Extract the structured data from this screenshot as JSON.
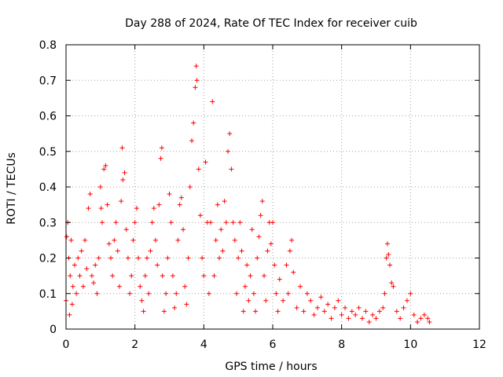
{
  "chart_data": {
    "type": "scatter",
    "title": "Day 288 of 2024, Rate Of TEC Index for receiver cuib",
    "xlabel": "GPS time / hours",
    "ylabel": "ROTI / TECUs",
    "xlim": [
      0,
      12
    ],
    "ylim": [
      0,
      0.8
    ],
    "xticks": [
      0,
      2,
      4,
      6,
      8,
      10,
      12
    ],
    "xtick_labels": [
      "0",
      "2",
      "4",
      "6",
      "8",
      "10",
      "12"
    ],
    "yticks": [
      0,
      0.1,
      0.2,
      0.3,
      0.4,
      0.5,
      0.6,
      0.7,
      0.8
    ],
    "ytick_labels": [
      "0",
      "0.1",
      "0.2",
      "0.3",
      "0.4",
      "0.5",
      "0.6",
      "0.7",
      "0.8"
    ],
    "grid": true,
    "marker": "+",
    "color": "#ff0000",
    "series": [
      {
        "name": "ROTI",
        "points": [
          [
            0.0,
            0.08
          ],
          [
            0.02,
            0.26
          ],
          [
            0.05,
            0.3
          ],
          [
            0.08,
            0.2
          ],
          [
            0.1,
            0.04
          ],
          [
            0.12,
            0.15
          ],
          [
            0.15,
            0.25
          ],
          [
            0.18,
            0.07
          ],
          [
            0.2,
            0.12
          ],
          [
            0.25,
            0.18
          ],
          [
            0.3,
            0.1
          ],
          [
            0.35,
            0.2
          ],
          [
            0.4,
            0.15
          ],
          [
            0.45,
            0.22
          ],
          [
            0.5,
            0.12
          ],
          [
            0.55,
            0.25
          ],
          [
            0.6,
            0.17
          ],
          [
            0.65,
            0.34
          ],
          [
            0.7,
            0.38
          ],
          [
            0.75,
            0.15
          ],
          [
            0.8,
            0.13
          ],
          [
            0.85,
            0.18
          ],
          [
            0.9,
            0.1
          ],
          [
            0.95,
            0.2
          ],
          [
            1.0,
            0.4
          ],
          [
            1.02,
            0.34
          ],
          [
            1.05,
            0.3
          ],
          [
            1.1,
            0.45
          ],
          [
            1.15,
            0.46
          ],
          [
            1.2,
            0.35
          ],
          [
            1.25,
            0.24
          ],
          [
            1.3,
            0.2
          ],
          [
            1.35,
            0.15
          ],
          [
            1.4,
            0.25
          ],
          [
            1.45,
            0.3
          ],
          [
            1.5,
            0.22
          ],
          [
            1.55,
            0.12
          ],
          [
            1.6,
            0.36
          ],
          [
            1.63,
            0.51
          ],
          [
            1.65,
            0.42
          ],
          [
            1.7,
            0.44
          ],
          [
            1.75,
            0.28
          ],
          [
            1.8,
            0.2
          ],
          [
            1.85,
            0.1
          ],
          [
            1.9,
            0.15
          ],
          [
            1.95,
            0.25
          ],
          [
            2.0,
            0.3
          ],
          [
            2.05,
            0.34
          ],
          [
            2.1,
            0.2
          ],
          [
            2.15,
            0.12
          ],
          [
            2.2,
            0.08
          ],
          [
            2.25,
            0.05
          ],
          [
            2.3,
            0.15
          ],
          [
            2.35,
            0.2
          ],
          [
            2.4,
            0.1
          ],
          [
            2.45,
            0.22
          ],
          [
            2.5,
            0.3
          ],
          [
            2.55,
            0.34
          ],
          [
            2.6,
            0.25
          ],
          [
            2.65,
            0.18
          ],
          [
            2.7,
            0.35
          ],
          [
            2.75,
            0.48
          ],
          [
            2.78,
            0.51
          ],
          [
            2.8,
            0.15
          ],
          [
            2.85,
            0.05
          ],
          [
            2.9,
            0.1
          ],
          [
            2.95,
            0.2
          ],
          [
            3.0,
            0.38
          ],
          [
            3.05,
            0.3
          ],
          [
            3.1,
            0.15
          ],
          [
            3.15,
            0.06
          ],
          [
            3.2,
            0.1
          ],
          [
            3.25,
            0.25
          ],
          [
            3.3,
            0.35
          ],
          [
            3.35,
            0.37
          ],
          [
            3.4,
            0.28
          ],
          [
            3.45,
            0.12
          ],
          [
            3.5,
            0.07
          ],
          [
            3.55,
            0.2
          ],
          [
            3.6,
            0.4
          ],
          [
            3.65,
            0.53
          ],
          [
            3.7,
            0.58
          ],
          [
            3.75,
            0.68
          ],
          [
            3.78,
            0.74
          ],
          [
            3.8,
            0.7
          ],
          [
            3.85,
            0.45
          ],
          [
            3.9,
            0.32
          ],
          [
            3.95,
            0.2
          ],
          [
            4.0,
            0.15
          ],
          [
            4.05,
            0.47
          ],
          [
            4.1,
            0.3
          ],
          [
            4.15,
            0.1
          ],
          [
            4.2,
            0.3
          ],
          [
            4.25,
            0.64
          ],
          [
            4.3,
            0.15
          ],
          [
            4.35,
            0.25
          ],
          [
            4.4,
            0.35
          ],
          [
            4.45,
            0.2
          ],
          [
            4.5,
            0.28
          ],
          [
            4.55,
            0.22
          ],
          [
            4.6,
            0.36
          ],
          [
            4.65,
            0.3
          ],
          [
            4.7,
            0.5
          ],
          [
            4.75,
            0.55
          ],
          [
            4.8,
            0.45
          ],
          [
            4.85,
            0.3
          ],
          [
            4.9,
            0.25
          ],
          [
            4.95,
            0.1
          ],
          [
            5.0,
            0.2
          ],
          [
            5.05,
            0.3
          ],
          [
            5.1,
            0.22
          ],
          [
            5.15,
            0.05
          ],
          [
            5.2,
            0.12
          ],
          [
            5.25,
            0.18
          ],
          [
            5.3,
            0.08
          ],
          [
            5.35,
            0.15
          ],
          [
            5.4,
            0.28
          ],
          [
            5.45,
            0.1
          ],
          [
            5.5,
            0.05
          ],
          [
            5.55,
            0.2
          ],
          [
            5.6,
            0.26
          ],
          [
            5.65,
            0.32
          ],
          [
            5.7,
            0.36
          ],
          [
            5.75,
            0.15
          ],
          [
            5.8,
            0.08
          ],
          [
            5.85,
            0.22
          ],
          [
            5.9,
            0.3
          ],
          [
            5.95,
            0.24
          ],
          [
            6.0,
            0.3
          ],
          [
            6.05,
            0.18
          ],
          [
            6.1,
            0.1
          ],
          [
            6.15,
            0.05
          ],
          [
            6.2,
            0.14
          ],
          [
            6.3,
            0.08
          ],
          [
            6.4,
            0.18
          ],
          [
            6.45,
            0.1
          ],
          [
            6.5,
            0.22
          ],
          [
            6.55,
            0.25
          ],
          [
            6.6,
            0.16
          ],
          [
            6.7,
            0.06
          ],
          [
            6.8,
            0.12
          ],
          [
            6.9,
            0.05
          ],
          [
            7.0,
            0.1
          ],
          [
            7.1,
            0.08
          ],
          [
            7.2,
            0.04
          ],
          [
            7.3,
            0.06
          ],
          [
            7.4,
            0.09
          ],
          [
            7.5,
            0.05
          ],
          [
            7.6,
            0.07
          ],
          [
            7.7,
            0.03
          ],
          [
            7.8,
            0.06
          ],
          [
            7.9,
            0.08
          ],
          [
            8.0,
            0.04
          ],
          [
            8.1,
            0.06
          ],
          [
            8.2,
            0.03
          ],
          [
            8.3,
            0.05
          ],
          [
            8.4,
            0.04
          ],
          [
            8.5,
            0.06
          ],
          [
            8.6,
            0.03
          ],
          [
            8.7,
            0.05
          ],
          [
            8.8,
            0.02
          ],
          [
            8.9,
            0.04
          ],
          [
            9.0,
            0.03
          ],
          [
            9.1,
            0.05
          ],
          [
            9.2,
            0.06
          ],
          [
            9.25,
            0.1
          ],
          [
            9.3,
            0.2
          ],
          [
            9.33,
            0.24
          ],
          [
            9.36,
            0.21
          ],
          [
            9.4,
            0.18
          ],
          [
            9.45,
            0.13
          ],
          [
            9.5,
            0.12
          ],
          [
            9.6,
            0.05
          ],
          [
            9.7,
            0.03
          ],
          [
            9.8,
            0.06
          ],
          [
            9.9,
            0.08
          ],
          [
            10.0,
            0.1
          ],
          [
            10.1,
            0.04
          ],
          [
            10.2,
            0.02
          ],
          [
            10.3,
            0.03
          ],
          [
            10.4,
            0.04
          ],
          [
            10.5,
            0.03
          ],
          [
            10.55,
            0.02
          ]
        ]
      }
    ]
  }
}
